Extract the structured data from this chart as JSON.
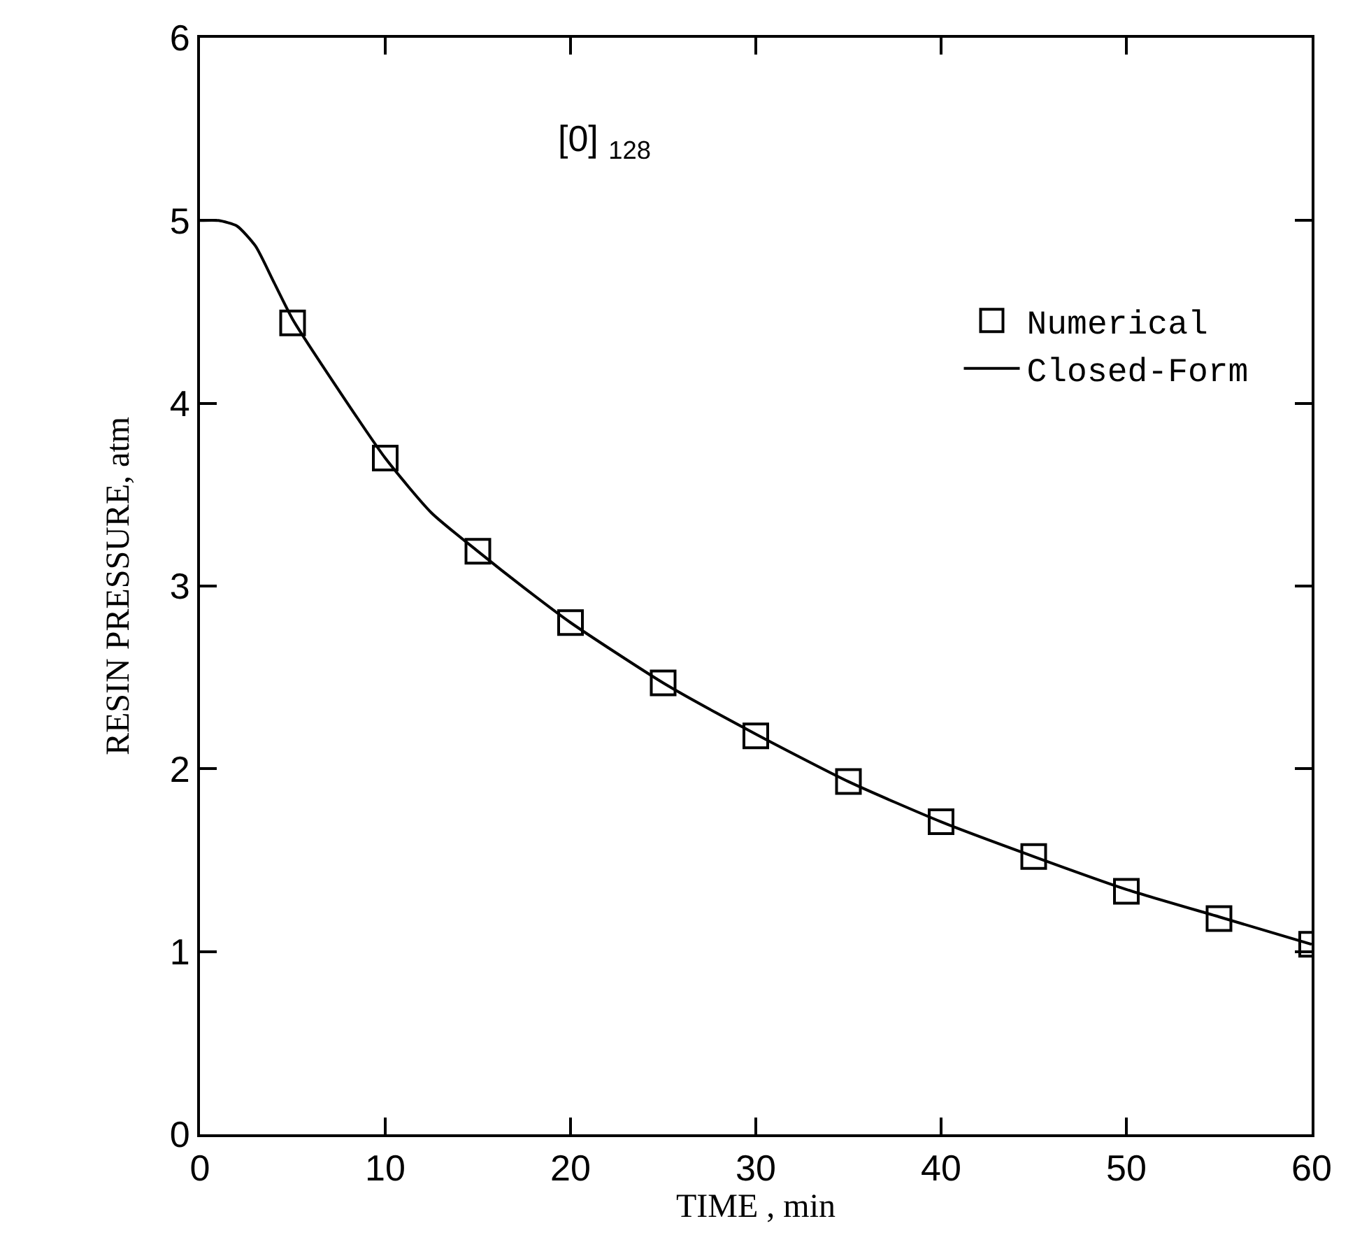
{
  "chart_data": {
    "type": "line",
    "xlabel": "TIME , min",
    "ylabel": "RESIN PRESSURE, atm",
    "annotations": [
      "[0]$_{128}$"
    ],
    "xlim": [
      0,
      60
    ],
    "xticks": [
      0,
      10,
      20,
      30,
      40,
      50,
      60
    ],
    "ylim": [
      0,
      6
    ],
    "yticks": [
      0,
      1,
      2,
      3,
      4,
      5,
      6
    ],
    "legend": "right",
    "series": [
      {
        "name": "Numerical",
        "type": "scatter",
        "marker": "square",
        "color": "#000000",
        "x": [
          5,
          10,
          15,
          20,
          25,
          30,
          35,
          40,
          45,
          50,
          55,
          60
        ],
        "values": [
          4.44,
          3.7,
          3.19,
          2.8,
          2.47,
          2.18,
          1.93,
          1.71,
          1.52,
          1.33,
          1.18,
          1.04
        ]
      },
      {
        "name": "Closed-Form",
        "line_style": "solid",
        "color": "#000000",
        "x": [
          0,
          1,
          2,
          3,
          4,
          5,
          7.5,
          10,
          12.5,
          15,
          17.5,
          20,
          25,
          30,
          35,
          40,
          45,
          50,
          55,
          60
        ],
        "values": [
          5.0,
          5.0,
          4.97,
          4.86,
          4.66,
          4.46,
          4.07,
          3.7,
          3.4,
          3.19,
          2.99,
          2.8,
          2.47,
          2.19,
          1.93,
          1.71,
          1.52,
          1.34,
          1.19,
          1.04
        ]
      }
    ]
  }
}
